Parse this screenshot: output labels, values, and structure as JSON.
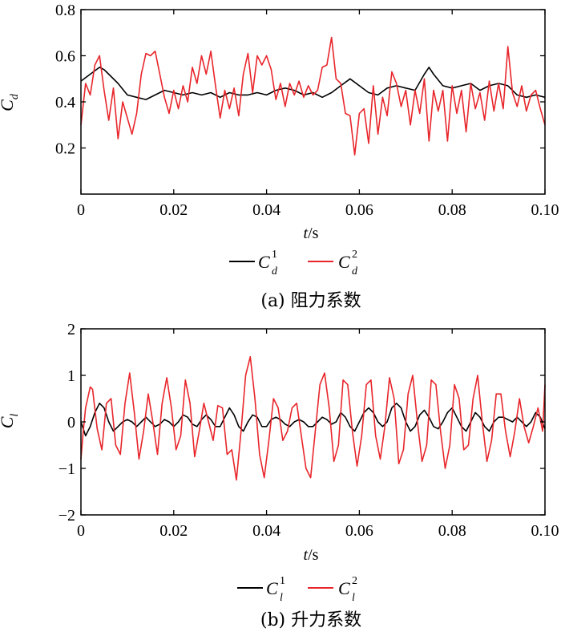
{
  "colors": {
    "series1": "#000000",
    "series2": "#e8262b"
  },
  "chart_data": [
    {
      "type": "line",
      "caption": "(a) 阻力系数",
      "ylabel_main": "C",
      "ylabel_sub": "d",
      "xlabel_main": "t",
      "xlabel_unit": "/s",
      "xlim": [
        0,
        0.1
      ],
      "ylim": [
        0,
        0.8
      ],
      "xticks": [
        0,
        0.02,
        0.04,
        0.06,
        0.08,
        0.1
      ],
      "xtick_labels": [
        "0",
        "0.02",
        "0.04",
        "0.06",
        "0.08",
        "0.10"
      ],
      "yticks": [
        0.2,
        0.4,
        0.6,
        0.8
      ],
      "ytick_labels": [
        "0.2",
        "0.4",
        "0.6",
        "0.8"
      ],
      "legend": [
        {
          "main": "C",
          "sup": "1",
          "sub": "d"
        },
        {
          "main": "C",
          "sup": "2",
          "sub": "d"
        }
      ],
      "series": [
        {
          "name": "C_d^1",
          "color": "#000000",
          "x": [
            0,
            0.002,
            0.004,
            0.005,
            0.006,
            0.008,
            0.01,
            0.012,
            0.014,
            0.016,
            0.018,
            0.02,
            0.022,
            0.024,
            0.026,
            0.028,
            0.03,
            0.032,
            0.034,
            0.036,
            0.038,
            0.04,
            0.042,
            0.044,
            0.046,
            0.048,
            0.05,
            0.052,
            0.054,
            0.056,
            0.058,
            0.06,
            0.062,
            0.064,
            0.066,
            0.068,
            0.07,
            0.072,
            0.074,
            0.075,
            0.076,
            0.078,
            0.08,
            0.082,
            0.084,
            0.086,
            0.088,
            0.09,
            0.092,
            0.094,
            0.096,
            0.098,
            0.1
          ],
          "y": [
            0.49,
            0.52,
            0.55,
            0.54,
            0.52,
            0.48,
            0.43,
            0.42,
            0.41,
            0.43,
            0.45,
            0.44,
            0.43,
            0.44,
            0.43,
            0.44,
            0.42,
            0.44,
            0.43,
            0.43,
            0.44,
            0.43,
            0.45,
            0.46,
            0.45,
            0.43,
            0.44,
            0.42,
            0.44,
            0.47,
            0.5,
            0.47,
            0.44,
            0.43,
            0.46,
            0.47,
            0.46,
            0.45,
            0.52,
            0.55,
            0.52,
            0.47,
            0.46,
            0.47,
            0.48,
            0.45,
            0.47,
            0.48,
            0.47,
            0.43,
            0.42,
            0.43,
            0.42
          ]
        },
        {
          "name": "C_d^2",
          "color": "#e8262b",
          "x": [
            0,
            0.001,
            0.002,
            0.003,
            0.004,
            0.005,
            0.006,
            0.007,
            0.008,
            0.009,
            0.01,
            0.011,
            0.012,
            0.013,
            0.014,
            0.015,
            0.016,
            0.017,
            0.018,
            0.019,
            0.02,
            0.021,
            0.022,
            0.023,
            0.024,
            0.025,
            0.026,
            0.027,
            0.028,
            0.029,
            0.03,
            0.031,
            0.032,
            0.033,
            0.034,
            0.035,
            0.036,
            0.037,
            0.038,
            0.039,
            0.04,
            0.041,
            0.042,
            0.043,
            0.044,
            0.045,
            0.046,
            0.047,
            0.048,
            0.049,
            0.05,
            0.051,
            0.052,
            0.053,
            0.054,
            0.055,
            0.056,
            0.057,
            0.058,
            0.059,
            0.06,
            0.061,
            0.062,
            0.063,
            0.064,
            0.065,
            0.066,
            0.067,
            0.068,
            0.069,
            0.07,
            0.071,
            0.072,
            0.073,
            0.074,
            0.075,
            0.076,
            0.077,
            0.078,
            0.079,
            0.08,
            0.081,
            0.082,
            0.083,
            0.084,
            0.085,
            0.086,
            0.087,
            0.088,
            0.089,
            0.09,
            0.091,
            0.092,
            0.093,
            0.094,
            0.095,
            0.096,
            0.097,
            0.098,
            0.099,
            0.1
          ],
          "y": [
            0.3,
            0.48,
            0.43,
            0.56,
            0.6,
            0.45,
            0.32,
            0.46,
            0.24,
            0.4,
            0.33,
            0.26,
            0.35,
            0.52,
            0.61,
            0.6,
            0.62,
            0.52,
            0.42,
            0.35,
            0.45,
            0.37,
            0.47,
            0.4,
            0.55,
            0.48,
            0.6,
            0.52,
            0.62,
            0.47,
            0.33,
            0.45,
            0.37,
            0.46,
            0.34,
            0.52,
            0.61,
            0.44,
            0.6,
            0.56,
            0.6,
            0.54,
            0.41,
            0.48,
            0.38,
            0.48,
            0.43,
            0.49,
            0.42,
            0.47,
            0.43,
            0.45,
            0.55,
            0.56,
            0.68,
            0.5,
            0.48,
            0.35,
            0.34,
            0.17,
            0.35,
            0.37,
            0.22,
            0.47,
            0.26,
            0.42,
            0.34,
            0.53,
            0.48,
            0.38,
            0.45,
            0.3,
            0.45,
            0.35,
            0.5,
            0.23,
            0.45,
            0.36,
            0.45,
            0.23,
            0.47,
            0.35,
            0.45,
            0.27,
            0.48,
            0.37,
            0.44,
            0.32,
            0.49,
            0.36,
            0.48,
            0.37,
            0.64,
            0.44,
            0.38,
            0.47,
            0.36,
            0.43,
            0.45,
            0.37,
            0.3
          ]
        }
      ]
    },
    {
      "type": "line",
      "caption": "(b) 升力系数",
      "ylabel_main": "C",
      "ylabel_sub": "l",
      "xlabel_main": "t",
      "xlabel_unit": "/s",
      "xlim": [
        0,
        0.1
      ],
      "ylim": [
        -2,
        2
      ],
      "xticks": [
        0,
        0.02,
        0.04,
        0.06,
        0.08,
        0.1
      ],
      "xtick_labels": [
        "0",
        "0.02",
        "0.04",
        "0.06",
        "0.08",
        "0.10"
      ],
      "yticks": [
        -2,
        -1,
        0,
        1,
        2
      ],
      "ytick_labels": [
        "−2",
        "−1",
        "0",
        "1",
        "2"
      ],
      "legend": [
        {
          "main": "C",
          "sup": "1",
          "sub": "l"
        },
        {
          "main": "C",
          "sup": "2",
          "sub": "l"
        }
      ],
      "series": [
        {
          "name": "C_l^1",
          "color": "#000000",
          "x": [
            0,
            0.001,
            0.002,
            0.003,
            0.004,
            0.005,
            0.006,
            0.007,
            0.008,
            0.009,
            0.01,
            0.011,
            0.012,
            0.013,
            0.014,
            0.015,
            0.016,
            0.017,
            0.018,
            0.019,
            0.02,
            0.021,
            0.022,
            0.023,
            0.024,
            0.025,
            0.026,
            0.027,
            0.028,
            0.029,
            0.03,
            0.031,
            0.032,
            0.033,
            0.034,
            0.035,
            0.036,
            0.037,
            0.038,
            0.039,
            0.04,
            0.041,
            0.042,
            0.043,
            0.044,
            0.045,
            0.046,
            0.047,
            0.048,
            0.049,
            0.05,
            0.051,
            0.052,
            0.053,
            0.054,
            0.055,
            0.056,
            0.057,
            0.058,
            0.059,
            0.06,
            0.061,
            0.062,
            0.063,
            0.064,
            0.065,
            0.066,
            0.067,
            0.068,
            0.069,
            0.07,
            0.071,
            0.072,
            0.073,
            0.074,
            0.075,
            0.076,
            0.077,
            0.078,
            0.079,
            0.08,
            0.081,
            0.082,
            0.083,
            0.084,
            0.085,
            0.086,
            0.087,
            0.088,
            0.089,
            0.09,
            0.091,
            0.092,
            0.093,
            0.094,
            0.095,
            0.096,
            0.097,
            0.098,
            0.099,
            0.1
          ],
          "y": [
            0.0,
            -0.3,
            -0.1,
            0.2,
            0.4,
            0.3,
            0.0,
            -0.2,
            -0.1,
            0.0,
            0.05,
            0.0,
            -0.1,
            0.0,
            0.1,
            0.0,
            -0.1,
            -0.05,
            0.05,
            0.0,
            -0.1,
            0.0,
            0.15,
            0.1,
            -0.05,
            -0.1,
            0.05,
            0.15,
            0.05,
            -0.1,
            -0.1,
            0.1,
            0.3,
            0.15,
            -0.1,
            -0.2,
            0.0,
            0.15,
            0.1,
            -0.1,
            -0.1,
            0.05,
            0.1,
            0.05,
            -0.05,
            -0.1,
            0.0,
            0.05,
            0.0,
            -0.1,
            -0.1,
            0.0,
            0.1,
            0.05,
            -0.05,
            0.0,
            0.2,
            0.1,
            -0.1,
            -0.2,
            0.0,
            0.2,
            0.3,
            0.2,
            0.0,
            -0.1,
            0.0,
            0.3,
            0.4,
            0.3,
            0.0,
            -0.2,
            -0.1,
            0.15,
            0.25,
            0.1,
            -0.1,
            -0.15,
            0.0,
            0.2,
            0.3,
            0.1,
            -0.1,
            -0.2,
            0.0,
            0.2,
            0.1,
            -0.1,
            -0.2,
            0.0,
            0.1,
            0.1,
            0.05,
            0.0,
            0.1,
            0.0,
            -0.1,
            0.0,
            0.2,
            0.1,
            -0.15
          ]
        },
        {
          "name": "C_l^2",
          "color": "#e8262b",
          "x": [
            0,
            0.0005,
            0.001,
            0.002,
            0.0025,
            0.0035,
            0.0045,
            0.0055,
            0.0065,
            0.0075,
            0.0085,
            0.0095,
            0.0105,
            0.0115,
            0.0125,
            0.0135,
            0.0145,
            0.0155,
            0.0165,
            0.0175,
            0.0185,
            0.0195,
            0.0205,
            0.0215,
            0.0225,
            0.0235,
            0.0245,
            0.0255,
            0.0265,
            0.0275,
            0.0285,
            0.0295,
            0.0305,
            0.0315,
            0.0325,
            0.0335,
            0.0345,
            0.0355,
            0.0365,
            0.0375,
            0.0385,
            0.0395,
            0.0405,
            0.0415,
            0.0425,
            0.0435,
            0.0445,
            0.0455,
            0.0465,
            0.0475,
            0.0485,
            0.0495,
            0.0505,
            0.0515,
            0.0525,
            0.0535,
            0.0545,
            0.0555,
            0.0565,
            0.0575,
            0.0585,
            0.0595,
            0.0605,
            0.0615,
            0.0625,
            0.0635,
            0.0645,
            0.0655,
            0.0665,
            0.0675,
            0.0685,
            0.0695,
            0.0705,
            0.0715,
            0.0725,
            0.0735,
            0.0745,
            0.0755,
            0.0765,
            0.0775,
            0.0785,
            0.0795,
            0.0805,
            0.0815,
            0.0825,
            0.0835,
            0.0845,
            0.0855,
            0.0865,
            0.0875,
            0.0885,
            0.0895,
            0.0905,
            0.0915,
            0.0925,
            0.0935,
            0.0945,
            0.0955,
            0.0965,
            0.0975,
            0.0985,
            0.0995,
            0.1
          ],
          "y": [
            -0.8,
            -0.2,
            0.3,
            0.75,
            0.7,
            -0.15,
            -0.6,
            0.4,
            0.5,
            -0.5,
            -0.7,
            0.4,
            1.05,
            0.2,
            -0.8,
            -0.2,
            0.6,
            0.0,
            -0.7,
            0.4,
            0.95,
            0.3,
            -0.6,
            -0.3,
            0.9,
            0.4,
            -0.75,
            -0.2,
            0.4,
            0.0,
            -0.4,
            0.35,
            0.3,
            -0.7,
            -0.6,
            -1.25,
            -0.2,
            1.0,
            1.4,
            0.5,
            -0.7,
            -1.2,
            -0.4,
            0.5,
            0.3,
            -0.4,
            -0.2,
            0.3,
            0.4,
            -0.3,
            -1.0,
            -1.2,
            -0.2,
            0.8,
            1.05,
            0.3,
            -0.85,
            -0.5,
            0.9,
            0.8,
            -0.2,
            -0.95,
            -0.3,
            0.8,
            0.9,
            -0.3,
            -0.8,
            -0.1,
            0.95,
            0.5,
            -0.9,
            -0.6,
            0.6,
            1.0,
            0.0,
            -0.85,
            -0.5,
            0.9,
            0.8,
            -0.2,
            -1.0,
            -0.5,
            0.8,
            0.5,
            -0.6,
            -0.5,
            0.5,
            1.0,
            0.0,
            -0.85,
            -0.4,
            0.6,
            0.6,
            -0.2,
            -0.75,
            -0.2,
            0.5,
            -0.1,
            -0.45,
            -0.1,
            0.3,
            -0.2,
            0.8
          ]
        }
      ]
    }
  ]
}
